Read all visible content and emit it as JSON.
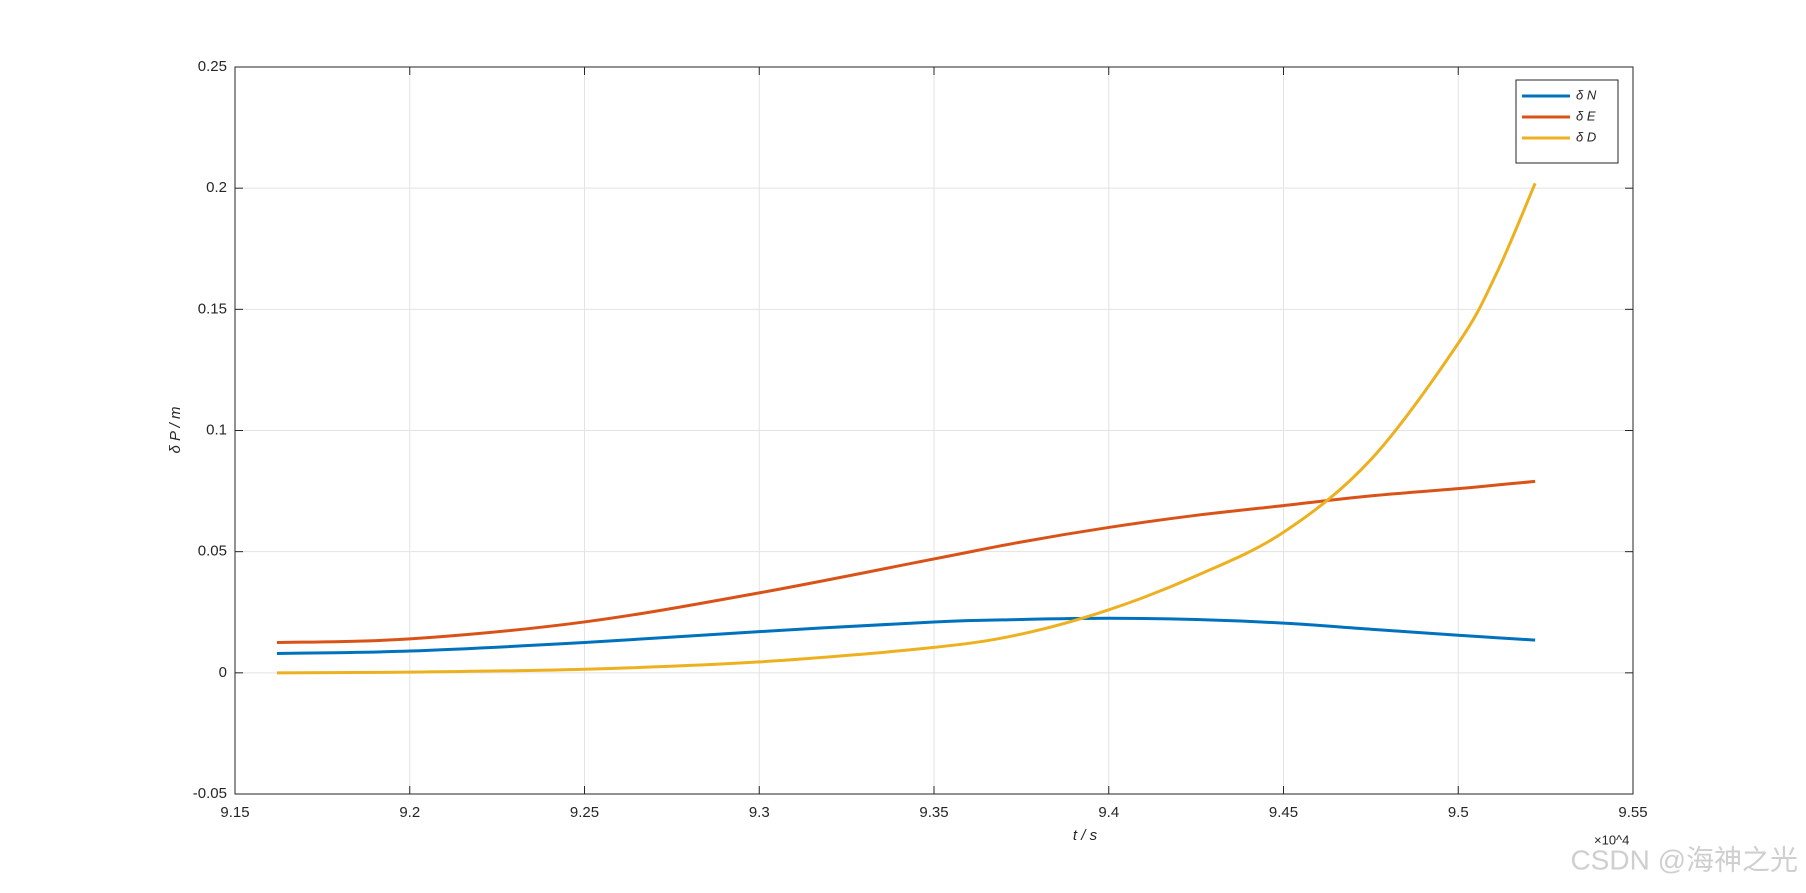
{
  "chart_data": {
    "type": "line",
    "x_label": "t  / s",
    "y_label": "δ P / m",
    "x_exponent_label": "×10^4",
    "watermark": "CSDN @海神之光",
    "x": [
      9.162,
      9.2,
      9.25,
      9.3,
      9.35,
      9.375,
      9.4,
      9.425,
      9.45,
      9.475,
      9.5,
      9.511,
      9.522
    ],
    "series": [
      {
        "name": "δ N",
        "color": "#0072bd",
        "values": [
          0.008,
          0.009,
          0.0125,
          0.017,
          0.021,
          0.022,
          0.0225,
          0.022,
          0.0205,
          0.018,
          0.0155,
          0.0145,
          0.0135
        ]
      },
      {
        "name": "δ E",
        "color": "#d95319",
        "values": [
          0.0125,
          0.014,
          0.021,
          0.033,
          0.047,
          0.054,
          0.06,
          0.065,
          0.069,
          0.073,
          0.076,
          0.0775,
          0.079
        ]
      },
      {
        "name": "δ D",
        "color": "#edb120",
        "values": [
          0,
          0.0003,
          0.0015,
          0.0045,
          0.0105,
          0.016,
          0.026,
          0.04,
          0.058,
          0.088,
          0.136,
          0.165,
          0.202
        ]
      }
    ],
    "xlim": [
      9.15,
      9.55
    ],
    "xticks": [
      9.15,
      9.2,
      9.25,
      9.3,
      9.35,
      9.4,
      9.45,
      9.5,
      9.55
    ],
    "ylim": [
      -0.05,
      0.25
    ],
    "yticks": [
      -0.05,
      0,
      0.05,
      0.1,
      0.15,
      0.2,
      0.25
    ],
    "grid": true,
    "legend": "top-right"
  }
}
